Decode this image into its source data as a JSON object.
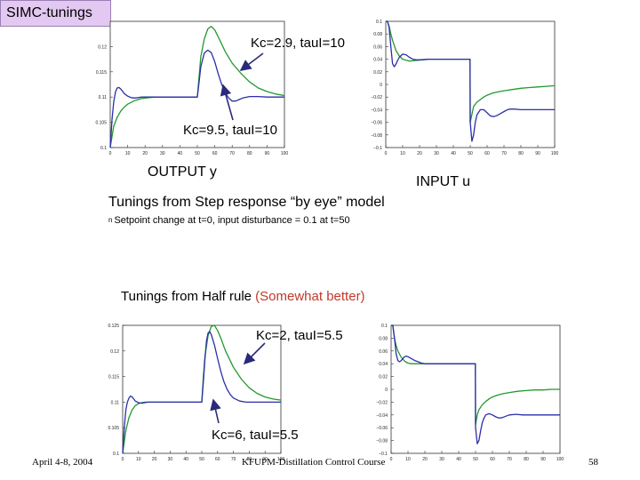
{
  "slide": {
    "title": "SIMC-tunings",
    "output_label": "OUTPUT y",
    "input_label": "INPUT u",
    "caption_top": "Tunings from Step response “by eye” model",
    "bullet": "Setpoint change at t=0, input disturbance = 0.1 at t=50",
    "bullet_marker": "n",
    "caption_bottom_black": "Tunings from Half rule ",
    "caption_bottom_red": "(Somewhat better)",
    "annotations": {
      "top_green": "Kc=2.9, tauI=10",
      "top_blue": "Kc=9.5, tauI=10",
      "bottom_green": "Kc=2, tauI=5.5",
      "bottom_blue": "Kc=6, tauI=5.5"
    },
    "footer": {
      "date": "April 4-8, 2004",
      "course": "KFUPM-Distillation Control Course",
      "page": "58"
    },
    "colors": {
      "green": "#22992e",
      "blue": "#2b2fa8",
      "title_bg": "#e3c8f2",
      "red_text": "#c0392b"
    }
  },
  "chart_data": [
    {
      "type": "line",
      "name": "top-output",
      "title": "",
      "xlabel": "",
      "ylabel": "",
      "xlim": [
        0,
        100
      ],
      "ylim": [
        0.1,
        0.125
      ],
      "x_ticks": [
        0,
        10,
        20,
        30,
        40,
        50,
        60,
        70,
        80,
        90,
        100
      ],
      "y_ticks": [
        0.1,
        0.105,
        0.11,
        0.115,
        0.12
      ],
      "y_tick_labels": [
        "0.1",
        "0.105",
        "0.11",
        "0.115",
        "0.12"
      ],
      "series": [
        {
          "name": "Kc=2.9, tauI=10",
          "color": "#22992e",
          "x": [
            0,
            2,
            4,
            6,
            8,
            10,
            14,
            18,
            22,
            26,
            30,
            35,
            40,
            45,
            50,
            52,
            54,
            56,
            58,
            60,
            63,
            66,
            70,
            75,
            80,
            85,
            90,
            95,
            100
          ],
          "y": [
            0.1,
            0.1042,
            0.106,
            0.1072,
            0.108,
            0.1086,
            0.1093,
            0.1097,
            0.1099,
            0.11,
            0.11,
            0.11,
            0.11,
            0.11,
            0.11,
            0.118,
            0.1215,
            0.1235,
            0.124,
            0.1233,
            0.1212,
            0.119,
            0.1167,
            0.1147,
            0.113,
            0.1118,
            0.1111,
            0.1106,
            0.1103
          ]
        },
        {
          "name": "Kc=9.5, tauI=10",
          "color": "#2b2fa8",
          "x": [
            0,
            1,
            2,
            3,
            4,
            5,
            6,
            7,
            8,
            10,
            12,
            14,
            16,
            18,
            20,
            25,
            30,
            35,
            40,
            45,
            50,
            51,
            52,
            54,
            56,
            58,
            60,
            62,
            64,
            66,
            68,
            70,
            72,
            74,
            76,
            80,
            85,
            90,
            95,
            100
          ],
          "y": [
            0.1,
            0.1055,
            0.109,
            0.111,
            0.1118,
            0.1119,
            0.1116,
            0.1112,
            0.1107,
            0.1102,
            0.1099,
            0.1098,
            0.1099,
            0.11,
            0.11,
            0.11,
            0.11,
            0.11,
            0.11,
            0.11,
            0.11,
            0.113,
            0.116,
            0.1187,
            0.1193,
            0.1188,
            0.117,
            0.1146,
            0.1125,
            0.1109,
            0.1098,
            0.1092,
            0.1092,
            0.1095,
            0.1098,
            0.1101,
            0.1101,
            0.11,
            0.11,
            0.11
          ]
        }
      ]
    },
    {
      "type": "line",
      "name": "top-input",
      "title": "",
      "xlabel": "",
      "ylabel": "",
      "xlim": [
        0,
        100
      ],
      "ylim": [
        -0.1,
        0.1
      ],
      "x_ticks": [
        0,
        10,
        20,
        30,
        40,
        50,
        60,
        70,
        80,
        90,
        100
      ],
      "y_ticks": [
        -0.1,
        -0.08,
        -0.06,
        -0.04,
        -0.02,
        0,
        0.02,
        0.04,
        0.06,
        0.08,
        0.1
      ],
      "y_tick_labels": [
        "−0.1",
        "−0.08",
        "−0.06",
        "−0.04",
        "−0.02",
        "0",
        "0.02",
        "0.04",
        "0.06",
        "0.08",
        "0.1"
      ],
      "series": [
        {
          "name": "Kc=2.9, tauI=10",
          "color": "#22992e",
          "x": [
            0,
            1,
            2,
            3,
            4,
            6,
            8,
            10,
            14,
            18,
            22,
            26,
            30,
            40,
            49.9,
            50,
            52,
            54,
            56,
            58,
            60,
            63,
            66,
            70,
            75,
            80,
            85,
            90,
            95,
            100
          ],
          "y": [
            0.1,
            0.1,
            0.092,
            0.08,
            0.07,
            0.054,
            0.045,
            0.04,
            0.037,
            0.038,
            0.039,
            0.04,
            0.04,
            0.04,
            0.04,
            -0.06,
            -0.035,
            -0.028,
            -0.024,
            -0.02,
            -0.017,
            -0.014,
            -0.012,
            -0.01,
            -0.008,
            -0.006,
            -0.005,
            -0.004,
            -0.003,
            -0.002
          ]
        },
        {
          "name": "Kc=9.5, tauI=10",
          "color": "#2b2fa8",
          "x": [
            0,
            1,
            2,
            3,
            4,
            5,
            6,
            7,
            8,
            10,
            12,
            14,
            16,
            18,
            20,
            25,
            30,
            40,
            49.9,
            50,
            51,
            52,
            53,
            54,
            56,
            58,
            60,
            62,
            64,
            66,
            68,
            70,
            72,
            74,
            76,
            80,
            85,
            90,
            95,
            100
          ],
          "y": [
            0.1,
            0.1,
            0.09,
            0.06,
            0.033,
            0.028,
            0.032,
            0.038,
            0.043,
            0.048,
            0.047,
            0.043,
            0.04,
            0.039,
            0.039,
            0.04,
            0.04,
            0.04,
            0.04,
            -0.06,
            -0.09,
            -0.08,
            -0.06,
            -0.048,
            -0.04,
            -0.04,
            -0.045,
            -0.05,
            -0.051,
            -0.049,
            -0.046,
            -0.043,
            -0.04,
            -0.039,
            -0.039,
            -0.04,
            -0.04,
            -0.04,
            -0.04,
            -0.04
          ]
        }
      ]
    },
    {
      "type": "line",
      "name": "bottom-output",
      "title": "",
      "xlabel": "",
      "ylabel": "",
      "xlim": [
        0,
        100
      ],
      "ylim": [
        0.1,
        0.125
      ],
      "x_ticks": [
        0,
        10,
        20,
        30,
        40,
        50,
        60,
        70,
        80,
        90,
        100
      ],
      "y_ticks": [
        0.1,
        0.105,
        0.11,
        0.115,
        0.12,
        0.125
      ],
      "y_tick_labels": [
        "0.1",
        "0.105",
        "0.11",
        "0.115",
        "0.12",
        "0.125"
      ],
      "series": [
        {
          "name": "Kc=2, tauI=5.5",
          "color": "#22992e",
          "x": [
            0,
            2,
            4,
            6,
            8,
            10,
            12,
            14,
            16,
            20,
            25,
            30,
            35,
            40,
            45,
            50,
            51,
            52,
            54,
            56,
            58,
            60,
            62,
            65,
            70,
            75,
            80,
            85,
            90,
            95,
            100
          ],
          "y": [
            0.1,
            0.1045,
            0.107,
            0.1085,
            0.1093,
            0.1097,
            0.1099,
            0.11,
            0.11,
            0.11,
            0.11,
            0.11,
            0.11,
            0.11,
            0.11,
            0.11,
            0.115,
            0.119,
            0.123,
            0.1248,
            0.125,
            0.124,
            0.1225,
            0.12,
            0.1168,
            0.1145,
            0.1128,
            0.1117,
            0.111,
            0.1106,
            0.1104
          ]
        },
        {
          "name": "Kc=6, tauI=5.5",
          "color": "#2b2fa8",
          "x": [
            0,
            1,
            2,
            3,
            4,
            5,
            6,
            7,
            8,
            10,
            12,
            14,
            16,
            18,
            20,
            25,
            30,
            35,
            40,
            45,
            50,
            51,
            52,
            53,
            54,
            55,
            56,
            58,
            60,
            62,
            64,
            66,
            68,
            70,
            74,
            78,
            82,
            86,
            90,
            95,
            100
          ],
          "y": [
            0.1,
            0.105,
            0.1085,
            0.11,
            0.1108,
            0.1112,
            0.111,
            0.1106,
            0.1102,
            0.1099,
            0.1098,
            0.1099,
            0.11,
            0.11,
            0.11,
            0.11,
            0.11,
            0.11,
            0.11,
            0.11,
            0.11,
            0.114,
            0.1185,
            0.122,
            0.1235,
            0.1238,
            0.1232,
            0.1212,
            0.1185,
            0.116,
            0.114,
            0.1125,
            0.1115,
            0.1108,
            0.1102,
            0.11,
            0.11,
            0.11,
            0.11,
            0.11,
            0.11
          ]
        }
      ]
    },
    {
      "type": "line",
      "name": "bottom-input",
      "title": "",
      "xlabel": "",
      "ylabel": "",
      "xlim": [
        0,
        100
      ],
      "ylim": [
        -0.1,
        0.1
      ],
      "x_ticks": [
        0,
        10,
        20,
        30,
        40,
        50,
        60,
        70,
        80,
        90,
        100
      ],
      "y_ticks": [
        -0.1,
        -0.08,
        -0.06,
        -0.04,
        -0.02,
        0,
        0.02,
        0.04,
        0.06,
        0.08,
        0.1
      ],
      "y_tick_labels": [
        "−0.1",
        "−0.08",
        "−0.06",
        "−0.04",
        "−0.02",
        "0",
        "0.02",
        "0.04",
        "0.06",
        "0.08",
        "0.1"
      ],
      "series": [
        {
          "name": "Kc=2, tauI=5.5",
          "color": "#22992e",
          "x": [
            0,
            1,
            2,
            3,
            4,
            6,
            8,
            10,
            12,
            14,
            16,
            20,
            25,
            30,
            40,
            49.9,
            50,
            51,
            52,
            54,
            56,
            58,
            60,
            63,
            66,
            70,
            75,
            80,
            85,
            90,
            95,
            100
          ],
          "y": [
            0.1,
            0.1,
            0.08,
            0.068,
            0.06,
            0.05,
            0.044,
            0.041,
            0.04,
            0.04,
            0.04,
            0.04,
            0.04,
            0.04,
            0.04,
            0.04,
            -0.055,
            -0.04,
            -0.032,
            -0.024,
            -0.019,
            -0.015,
            -0.012,
            -0.009,
            -0.007,
            -0.005,
            -0.003,
            -0.002,
            -0.001,
            -0.001,
            0.0,
            0.0
          ]
        },
        {
          "name": "Kc=6, tauI=5.5",
          "color": "#2b2fa8",
          "x": [
            0,
            1,
            2,
            3,
            4,
            5,
            6,
            7,
            8,
            9,
            10,
            12,
            14,
            16,
            18,
            20,
            25,
            30,
            40,
            49.9,
            50,
            51,
            52,
            53,
            54,
            55,
            56,
            58,
            60,
            62,
            64,
            66,
            68,
            70,
            74,
            78,
            82,
            86,
            90,
            95,
            100
          ],
          "y": [
            0.1,
            0.1,
            0.08,
            0.055,
            0.045,
            0.043,
            0.045,
            0.048,
            0.051,
            0.052,
            0.051,
            0.048,
            0.045,
            0.043,
            0.041,
            0.04,
            0.04,
            0.04,
            0.04,
            0.04,
            -0.06,
            -0.085,
            -0.08,
            -0.065,
            -0.052,
            -0.045,
            -0.04,
            -0.038,
            -0.04,
            -0.043,
            -0.045,
            -0.044,
            -0.042,
            -0.04,
            -0.039,
            -0.04,
            -0.04,
            -0.04,
            -0.04,
            -0.04,
            -0.04
          ]
        }
      ]
    }
  ]
}
